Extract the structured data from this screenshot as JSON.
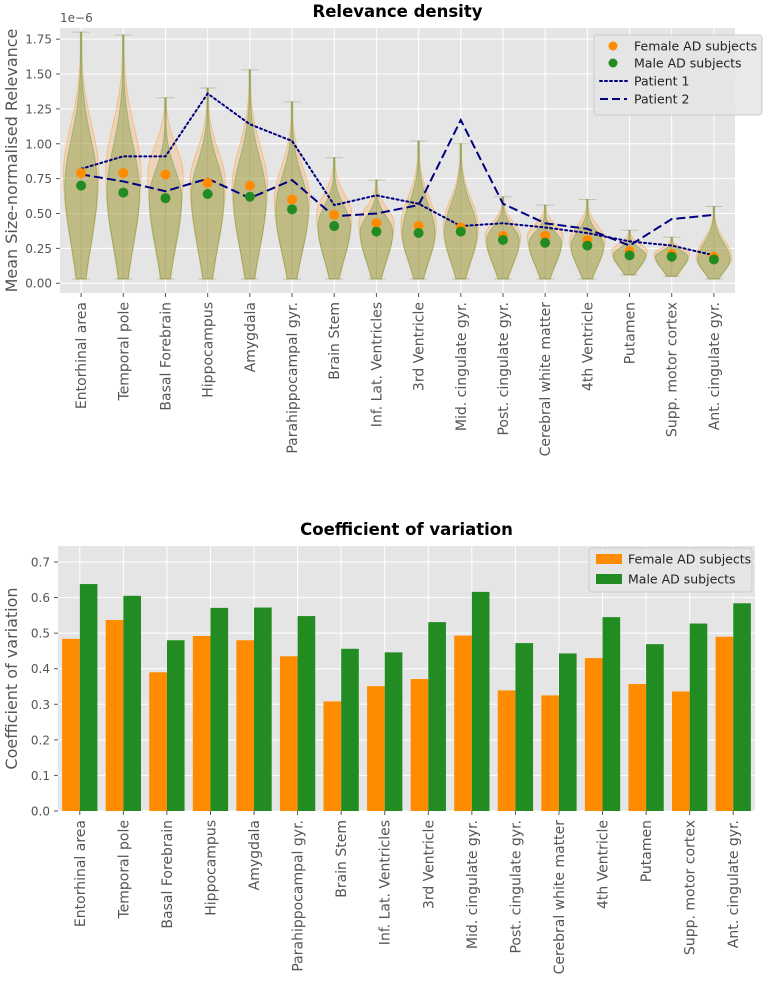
{
  "chart_data": [
    {
      "type": "violin",
      "title": "Relevance density",
      "ylabel": "Mean Size-normalised Relevance",
      "y_scale_label": "1e−6",
      "ylim": [
        -0.07,
        1.83
      ],
      "yticks": [
        "0.00",
        "0.25",
        "0.50",
        "0.75",
        "1.00",
        "1.25",
        "1.50",
        "1.75"
      ],
      "ytick_values": [
        0,
        0.25,
        0.5,
        0.75,
        1.0,
        1.25,
        1.5,
        1.75
      ],
      "grid": true,
      "legend_position": "top-right",
      "categories": [
        "Entorhinal area",
        "Temporal pole",
        "Basal Forebrain",
        "Hippocampus",
        "Amygdala",
        "Parahippocampal gyr.",
        "Brain Stem",
        "Inf. Lat. Ventricles",
        "3rd Ventricle",
        "Mid. cingulate gyr.",
        "Post. cingulate gyr.",
        "Cerebral white matter",
        "4th Ventricle",
        "Putamen",
        "Supp. motor cortex",
        "Ant. cingulate gyr."
      ],
      "violin_max": [
        1.8,
        1.78,
        1.33,
        1.4,
        1.53,
        1.3,
        0.9,
        0.74,
        1.02,
        1.0,
        0.62,
        0.56,
        0.6,
        0.38,
        0.33,
        0.55
      ],
      "violin_min": [
        0.03,
        0.03,
        0.03,
        0.03,
        0.03,
        0.03,
        0.03,
        0.03,
        0.03,
        0.03,
        0.03,
        0.03,
        0.03,
        0.06,
        0.05,
        0.03
      ],
      "series": [
        {
          "name": "Female AD subjects",
          "kind": "marker",
          "color": "#ff8c00",
          "values": [
            0.79,
            0.79,
            0.78,
            0.72,
            0.7,
            0.6,
            0.49,
            0.43,
            0.41,
            0.4,
            0.34,
            0.34,
            0.31,
            0.23,
            0.21,
            0.19
          ]
        },
        {
          "name": "Male AD subjects",
          "kind": "marker",
          "color": "#228b22",
          "values": [
            0.7,
            0.65,
            0.61,
            0.64,
            0.62,
            0.53,
            0.41,
            0.37,
            0.36,
            0.37,
            0.31,
            0.29,
            0.27,
            0.2,
            0.19,
            0.17
          ]
        },
        {
          "name": "Patient 1",
          "kind": "dotted-line",
          "color": "#000080",
          "values": [
            0.82,
            0.91,
            0.91,
            1.36,
            1.14,
            1.02,
            0.56,
            0.63,
            0.57,
            0.41,
            0.43,
            0.4,
            0.36,
            0.3,
            0.27,
            0.2
          ]
        },
        {
          "name": "Patient 2",
          "kind": "dashed-line",
          "color": "#000080",
          "values": [
            0.78,
            0.73,
            0.66,
            0.75,
            0.61,
            0.74,
            0.48,
            0.5,
            0.56,
            1.17,
            0.57,
            0.43,
            0.39,
            0.27,
            0.46,
            0.49
          ]
        }
      ]
    },
    {
      "type": "bar",
      "title": "Coefficient of variation",
      "ylabel": "Coefficient of variation",
      "ylim": [
        0,
        0.745
      ],
      "yticks": [
        "0.0",
        "0.1",
        "0.2",
        "0.3",
        "0.4",
        "0.5",
        "0.6",
        "0.7"
      ],
      "ytick_values": [
        0,
        0.1,
        0.2,
        0.3,
        0.4,
        0.5,
        0.6,
        0.7
      ],
      "grid": true,
      "legend_position": "top-right",
      "categories": [
        "Entorhinal area",
        "Temporal pole",
        "Basal Forebrain",
        "Hippocampus",
        "Amygdala",
        "Parahippocampal gyr.",
        "Brain Stem",
        "Inf. Lat. Ventricles",
        "3rd Ventricle",
        "Mid. cingulate gyr.",
        "Post. cingulate gyr.",
        "Cerebral white matter",
        "4th Ventricle",
        "Putamen",
        "Supp. motor cortex",
        "Ant. cingulate gyr."
      ],
      "series": [
        {
          "name": "Female AD subjects",
          "color": "#ff8c00",
          "values": [
            0.484,
            0.537,
            0.39,
            0.492,
            0.48,
            0.435,
            0.308,
            0.351,
            0.371,
            0.493,
            0.339,
            0.325,
            0.43,
            0.357,
            0.336,
            0.49
          ]
        },
        {
          "name": "Male AD subjects",
          "color": "#228b22",
          "values": [
            0.638,
            0.605,
            0.48,
            0.571,
            0.572,
            0.548,
            0.456,
            0.446,
            0.531,
            0.616,
            0.472,
            0.443,
            0.545,
            0.469,
            0.527,
            0.584
          ]
        }
      ]
    }
  ]
}
